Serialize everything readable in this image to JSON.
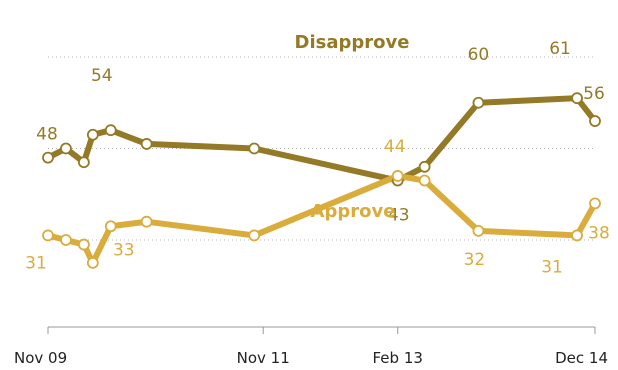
{
  "chart_data": {
    "type": "line",
    "x_ticks": [
      "Nov 09",
      "Nov 11",
      "Feb 13",
      "Dec 14"
    ],
    "ylim": [
      0,
      70
    ],
    "gridlines": [
      30,
      50,
      70
    ],
    "grid": "dotted",
    "series": [
      {
        "name": "Disapprove",
        "color": "#947a26",
        "points": [
          {
            "x": "2009-11",
            "y": 48,
            "label": "48"
          },
          {
            "x": "2010-01",
            "y": 50
          },
          {
            "x": "2010-03",
            "y": 47
          },
          {
            "x": "2010-04",
            "y": 53
          },
          {
            "x": "2010-06",
            "y": 54,
            "label": "54"
          },
          {
            "x": "2010-10",
            "y": 51
          },
          {
            "x": "2011-10",
            "y": 50
          },
          {
            "x": "2013-02",
            "y": 43,
            "label": "43"
          },
          {
            "x": "2013-05",
            "y": 46
          },
          {
            "x": "2013-11",
            "y": 60,
            "label": "60"
          },
          {
            "x": "2014-10",
            "y": 61,
            "label": "61"
          },
          {
            "x": "2014-12",
            "y": 56,
            "label": "56"
          }
        ]
      },
      {
        "name": "Approve",
        "color": "#d9ac3c",
        "points": [
          {
            "x": "2009-11",
            "y": 31,
            "label": "31"
          },
          {
            "x": "2010-01",
            "y": 30
          },
          {
            "x": "2010-03",
            "y": 29
          },
          {
            "x": "2010-04",
            "y": 25
          },
          {
            "x": "2010-06",
            "y": 33,
            "label": "33"
          },
          {
            "x": "2010-10",
            "y": 34
          },
          {
            "x": "2011-10",
            "y": 31
          },
          {
            "x": "2013-02",
            "y": 44,
            "label": "44"
          },
          {
            "x": "2013-05",
            "y": 43
          },
          {
            "x": "2013-11",
            "y": 32,
            "label": "32"
          },
          {
            "x": "2014-10",
            "y": 31,
            "label": "31"
          },
          {
            "x": "2014-12",
            "y": 38,
            "label": "38"
          }
        ]
      }
    ]
  }
}
